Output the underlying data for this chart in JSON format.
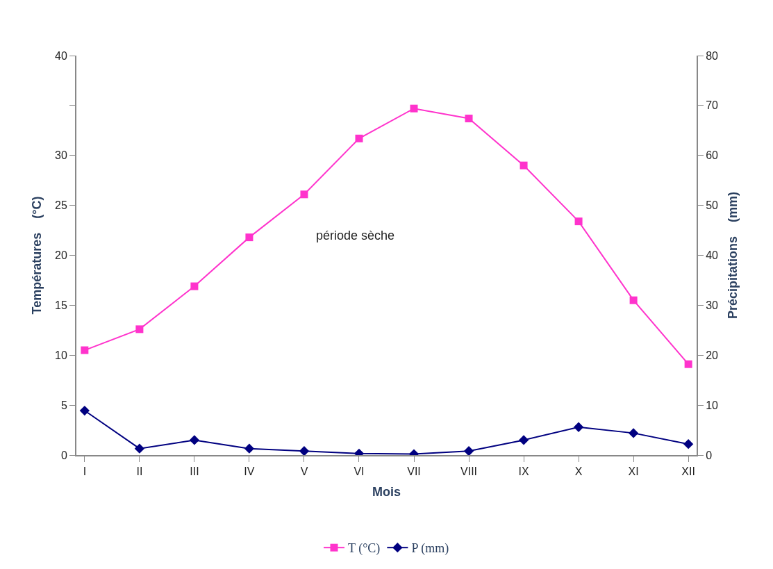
{
  "chart_data": {
    "type": "line",
    "xlabel": "Mois",
    "ylabel": "Températures    (°C)",
    "y2label": "Précipitations    (mm)",
    "categories": [
      "I",
      "II",
      "III",
      "IV",
      "V",
      "VI",
      "VII",
      "VIII",
      "IX",
      "X",
      "XI",
      "XII"
    ],
    "series": [
      {
        "name": "T (°C)",
        "color": "#ff33cc",
        "marker": "square",
        "values": [
          10.5,
          12.6,
          16.9,
          21.8,
          26.1,
          31.7,
          34.7,
          33.7,
          29.0,
          23.4,
          15.5,
          9.1
        ]
      },
      {
        "name": "P (mm)",
        "color": "#000080",
        "marker": "diamond",
        "axis": "y2",
        "values": [
          8.9,
          1.3,
          3.0,
          1.3,
          0.8,
          0.3,
          0.2,
          0.8,
          3.0,
          5.6,
          4.4,
          2.2
        ]
      }
    ],
    "ylim": [
      0,
      40
    ],
    "yticks": [
      0,
      5,
      10,
      15,
      20,
      25,
      30,
      {
        "value": 35,
        "label": null
      },
      40
    ],
    "y2lim": [
      0,
      80
    ],
    "y2ticks": [
      0,
      10,
      20,
      30,
      40,
      50,
      60,
      70,
      80
    ],
    "annotations": [
      "période sèche"
    ],
    "line_style": "solid",
    "legend": "bottom"
  }
}
